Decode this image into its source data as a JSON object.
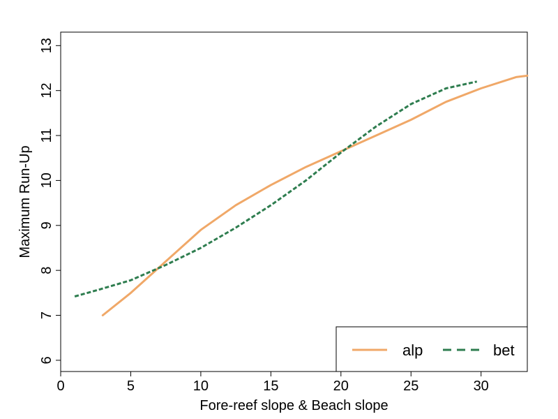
{
  "chart_data": {
    "type": "line",
    "xlabel": "Fore-reef slope & Beach slope",
    "ylabel": "Maximum Run-Up",
    "xlim": [
      0,
      33.3
    ],
    "ylim": [
      5.75,
      13.3
    ],
    "xticks": [
      0,
      5,
      10,
      15,
      20,
      25,
      30
    ],
    "yticks": [
      6,
      7,
      8,
      9,
      10,
      11,
      12,
      13
    ],
    "grid": false,
    "legend_position": "bottom-right",
    "series": [
      {
        "name": "alp",
        "color": "#F0A868",
        "style": "solid",
        "x": [
          3,
          5,
          7.5,
          10,
          12.5,
          15,
          17.5,
          20,
          22.5,
          25,
          27.5,
          30,
          32.5,
          33.3
        ],
        "y": [
          7.0,
          7.5,
          8.2,
          8.9,
          9.45,
          9.9,
          10.3,
          10.65,
          11.0,
          11.35,
          11.75,
          12.05,
          12.3,
          12.33
        ]
      },
      {
        "name": "bet",
        "color": "#2E7D4F",
        "style": "dashed",
        "x": [
          1,
          2.5,
          5,
          7.5,
          10,
          12.5,
          15,
          17.5,
          20,
          22.5,
          25,
          27.5,
          29.7
        ],
        "y": [
          7.42,
          7.55,
          7.78,
          8.12,
          8.5,
          8.95,
          9.45,
          10.0,
          10.62,
          11.2,
          11.7,
          12.05,
          12.2
        ]
      }
    ]
  }
}
